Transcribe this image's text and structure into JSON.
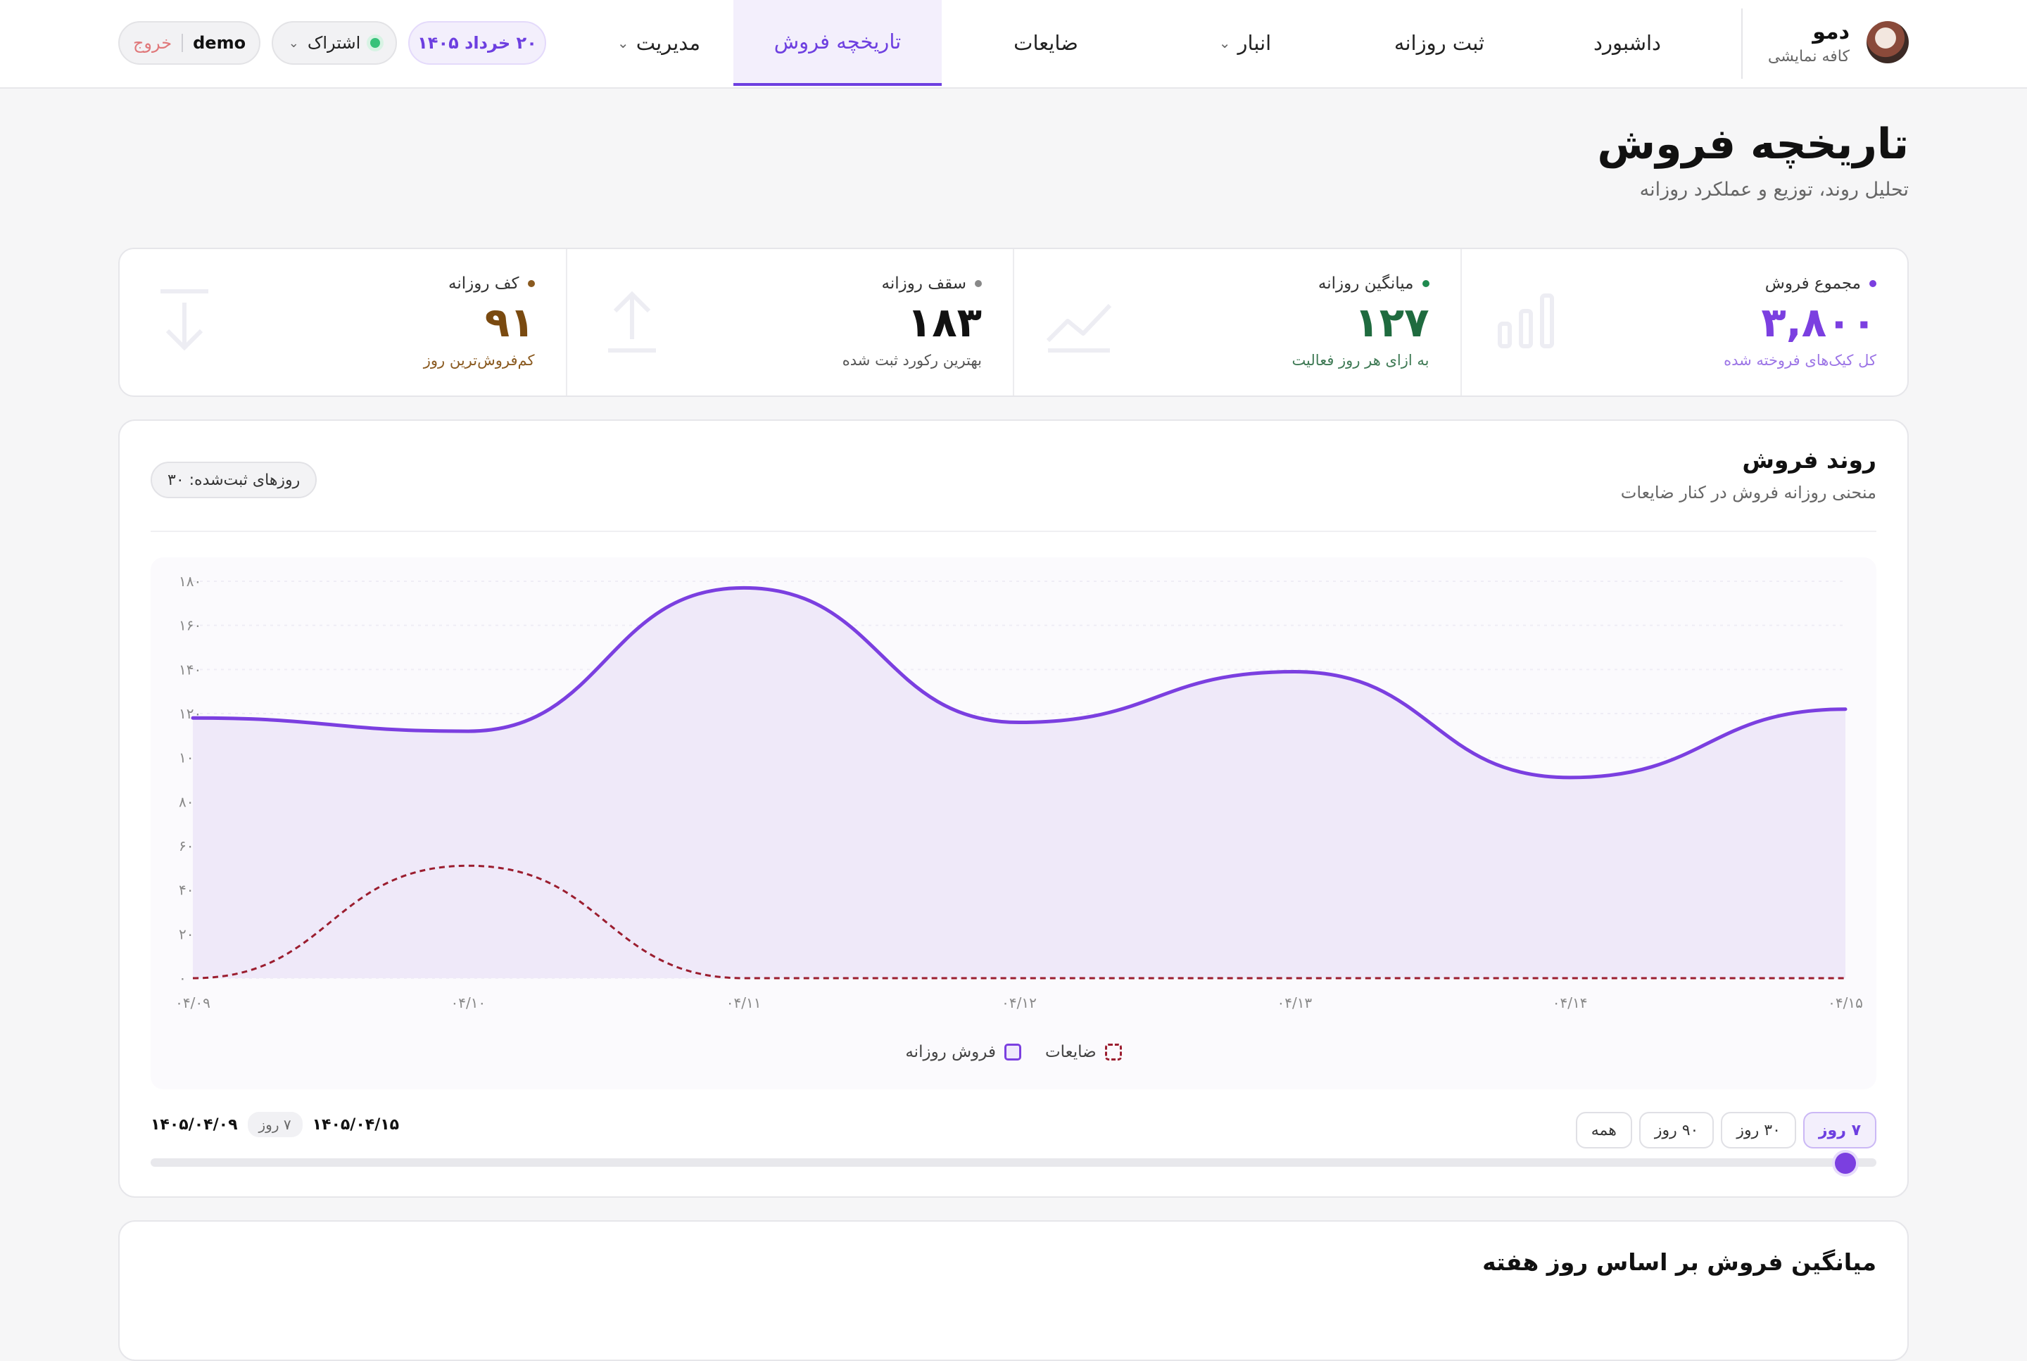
{
  "brand": {
    "name": "دمو",
    "subtitle": "کافه نمایشی"
  },
  "nav": {
    "items": [
      {
        "label": "داشبورد",
        "has_menu": false
      },
      {
        "label": "ثبت روزانه",
        "has_menu": false
      },
      {
        "label": "انبار",
        "has_menu": true
      },
      {
        "label": "ضایعات",
        "has_menu": false
      },
      {
        "label": "تاریخچه فروش",
        "has_menu": false,
        "active": true
      },
      {
        "label": "مدیریت",
        "has_menu": true
      }
    ],
    "date_pill": "۲۰ خرداد ۱۴۰۵",
    "subscription_label": "اشتراک",
    "username": "demo",
    "logout_label": "خروج"
  },
  "page": {
    "title": "تاریخچه فروش",
    "subtitle": "تحلیل روند، توزیع و عملکرد روزانه"
  },
  "stats": [
    {
      "label": "مجموع فروش",
      "value": "۳,۸۰۰",
      "note": "کل کیک‌های فروخته شده",
      "color": "#7b3fe0",
      "note_color": "#9c75e6",
      "icon": "bar-chart-icon"
    },
    {
      "label": "میانگین روزانه",
      "value": "۱۲۷",
      "note": "به ازای هر روز فعالیت",
      "color": "#1f6b3f",
      "note_color": "#3f7a55",
      "icon": "trend-line-icon"
    },
    {
      "label": "سقف روزانه",
      "value": "۱۸۳",
      "note": "بهترین رکورد ثبت شده",
      "color": "#111111",
      "note_color": "#555555",
      "icon": "arrow-up-icon"
    },
    {
      "label": "کف روزانه",
      "value": "۹۱",
      "note": "کم‌فروش‌ترین روز",
      "color": "#7a4a10",
      "note_color": "#8a5a20",
      "icon": "arrow-down-icon"
    }
  ],
  "trend": {
    "title": "روند فروش",
    "subtitle": "منحنی روزانه فروش در کنار ضایعات",
    "days_badge": "روزهای ثبت‌شده: ۳۰",
    "ranges": [
      "۷ روز",
      "۳۰ روز",
      "۹۰ روز",
      "همه"
    ],
    "active_range": 0,
    "range_start": "۱۴۰۵/۰۴/۰۹",
    "range_end": "۱۴۰۵/۰۴/۱۵",
    "range_days": "۷ روز",
    "slider_value": 1
  },
  "chart_data": {
    "type": "area",
    "x": [
      "۰۴/۰۹",
      "۰۴/۱۰",
      "۰۴/۱۱",
      "۰۴/۱۲",
      "۰۴/۱۳",
      "۰۴/۱۴",
      "۰۴/۱۵"
    ],
    "series": [
      {
        "name": "فروش روزانه",
        "values": [
          118,
          112,
          177,
          116,
          139,
          91,
          122
        ],
        "color": "#7b3fe0",
        "style": "solid-area"
      },
      {
        "name": "ضایعات",
        "values": [
          0,
          51,
          0,
          0,
          0,
          0,
          0
        ],
        "color": "#9b1d2f",
        "style": "dashed"
      }
    ],
    "y_ticks": [
      "۰",
      "۲۰",
      "۴۰",
      "۶۰",
      "۸۰",
      "۱۰۰",
      "۱۲۰",
      "۱۴۰",
      "۱۶۰",
      "۱۸۰"
    ],
    "ylim": [
      0,
      180
    ],
    "grid": true,
    "legend_position": "bottom"
  },
  "weekday": {
    "title": "میانگین فروش بر اساس روز هفته"
  }
}
